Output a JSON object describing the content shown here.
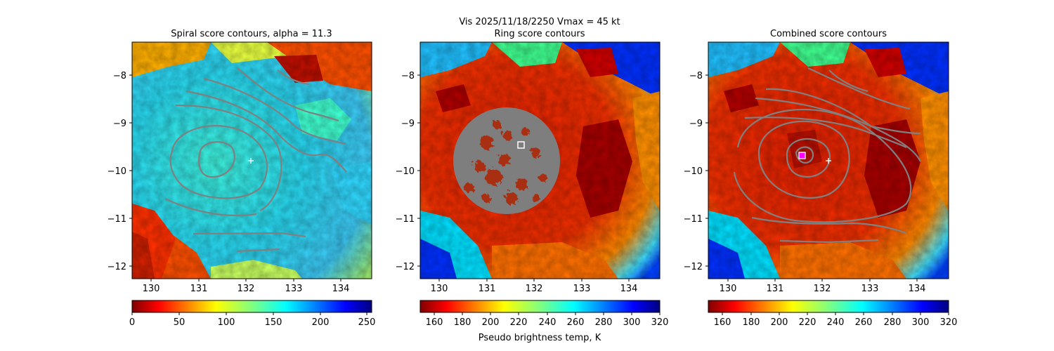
{
  "suptitle": "Vis  2025/11/18/2250    Vmax = 45 kt",
  "colorbar_label": "Pseudo brightness temp, K",
  "chart_data": [
    {
      "type": "heatmap",
      "title": "Spiral score contours, alpha = 11.3",
      "xlim": [
        129.6,
        134.7
      ],
      "ylim": [
        -12.3,
        -7.3
      ],
      "xticks": [
        "130",
        "131",
        "132",
        "133",
        "134"
      ],
      "yticks": [
        "−8",
        "−9",
        "−10",
        "−11",
        "−12"
      ],
      "colormap": "jet_r",
      "colorbar_range": [
        0,
        255
      ],
      "colorbar_ticks": [
        "0",
        "50",
        "100",
        "150",
        "200",
        "250"
      ],
      "markers": [
        {
          "kind": "white-cross",
          "lon": 132.1,
          "lat": -9.8
        }
      ],
      "contour_color": "#808080"
    },
    {
      "type": "heatmap",
      "title": "Ring score contours",
      "xlim": [
        129.6,
        134.7
      ],
      "ylim": [
        -12.3,
        -7.3
      ],
      "xticks": [
        "130",
        "131",
        "132",
        "133",
        "134"
      ],
      "yticks": [
        "−8",
        "−9",
        "−10",
        "−11",
        "−12"
      ],
      "colormap": "jet_r",
      "colorbar_range": [
        150,
        320
      ],
      "colorbar_ticks": [
        "160",
        "180",
        "200",
        "220",
        "240",
        "260",
        "280",
        "300",
        "320"
      ],
      "markers": [
        {
          "kind": "white-square",
          "lon": 131.7,
          "lat": -9.45
        }
      ],
      "ring_region": {
        "center_lon": 131.6,
        "center_lat": -9.75,
        "radius_deg": 1.15
      }
    },
    {
      "type": "heatmap",
      "title": "Combined score contours",
      "xlim": [
        129.6,
        134.7
      ],
      "ylim": [
        -12.3,
        -7.3
      ],
      "xticks": [
        "130",
        "131",
        "132",
        "133",
        "134"
      ],
      "yticks": [
        "−8",
        "−9",
        "−10",
        "−11",
        "−12"
      ],
      "colormap": "jet_r",
      "colorbar_range": [
        150,
        320
      ],
      "colorbar_ticks": [
        "160",
        "180",
        "200",
        "220",
        "240",
        "260",
        "280",
        "300",
        "320"
      ],
      "markers": [
        {
          "kind": "magenta-square",
          "lon": 131.55,
          "lat": -9.68
        },
        {
          "kind": "white-cross",
          "lon": 132.1,
          "lat": -9.78
        }
      ],
      "contour_color": "#808080"
    }
  ]
}
